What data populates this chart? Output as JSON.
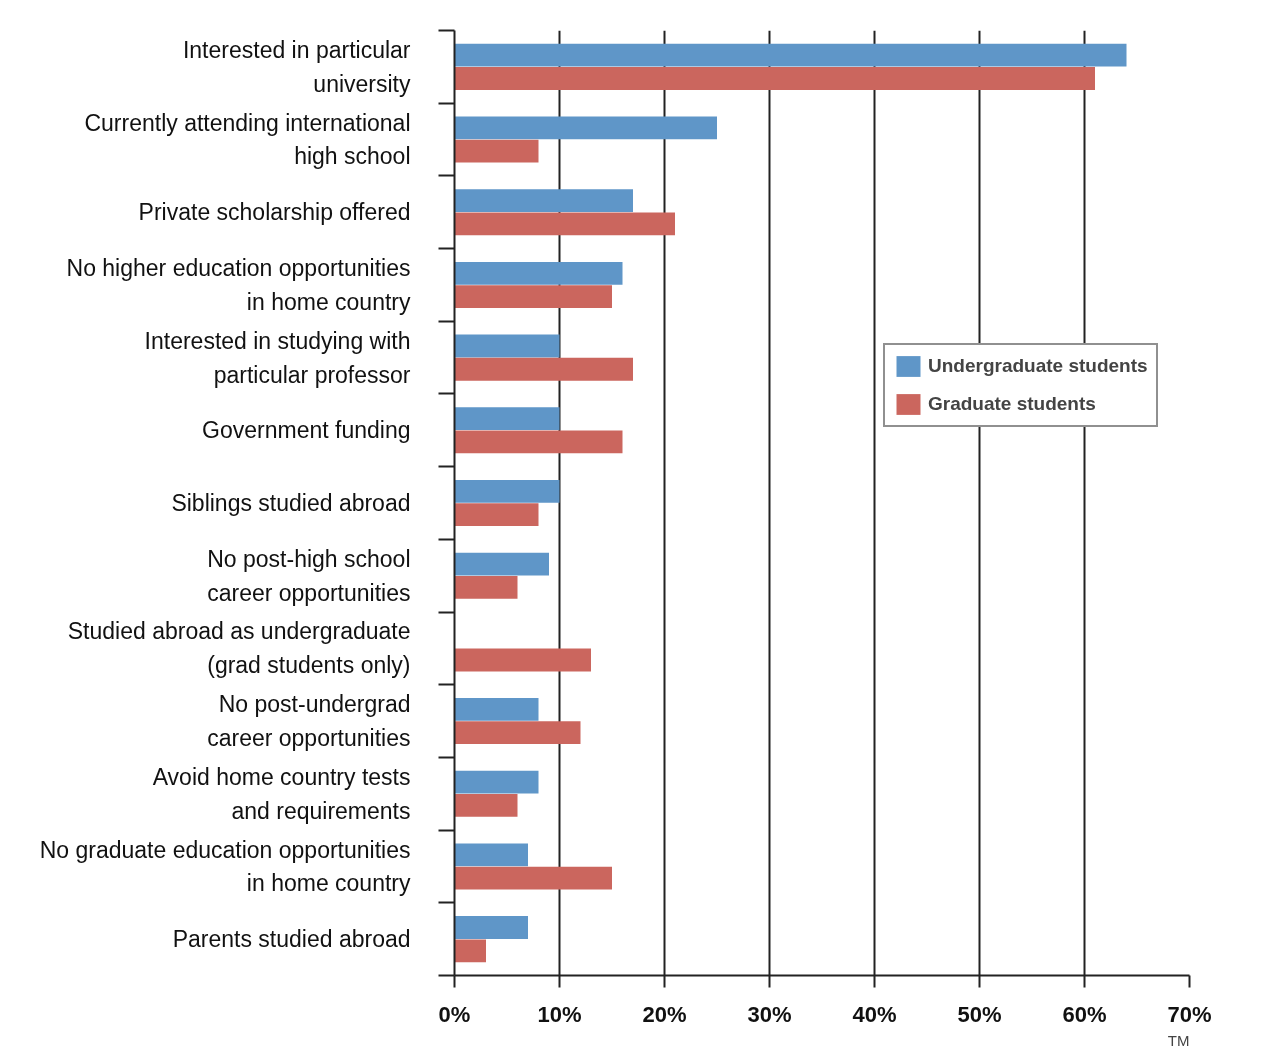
{
  "chart_data": {
    "type": "bar",
    "orientation": "horizontal",
    "categories": [
      "Interested in particular\nuniversity",
      "Currently attending international\nhigh school",
      "Private scholarship offered",
      "No higher education opportunities\nin home country",
      "Interested in studying with\nparticular professor",
      "Government funding",
      "Siblings studied abroad",
      "No post-high school\ncareer opportunities",
      "Studied abroad as undergraduate\n(grad students only)",
      "No post-undergrad\ncareer opportunities",
      "Avoid home country tests\nand requirements",
      "No graduate education opportunities\nin home country",
      "Parents studied abroad"
    ],
    "series": [
      {
        "name": "Undergraduate students",
        "color": "#5f96c8",
        "values": [
          64,
          25,
          17,
          16,
          10,
          10,
          10,
          9,
          0,
          8,
          8,
          7,
          7
        ]
      },
      {
        "name": "Graduate students",
        "color": "#cb665e",
        "values": [
          61,
          8,
          21,
          15,
          17,
          16,
          8,
          6,
          13,
          12,
          6,
          15,
          3
        ]
      }
    ],
    "xlim": [
      0,
      70
    ],
    "xticks": [
      {
        "value": 0,
        "label": "0%"
      },
      {
        "value": 10,
        "label": "10%"
      },
      {
        "value": 20,
        "label": "20%"
      },
      {
        "value": 30,
        "label": "30%"
      },
      {
        "value": 40,
        "label": "40%"
      },
      {
        "value": 50,
        "label": "50%"
      },
      {
        "value": 60,
        "label": "60%"
      },
      {
        "value": 70,
        "label": "70%"
      }
    ],
    "grid": "x",
    "legend": "right",
    "annotations": [
      "TM"
    ]
  }
}
